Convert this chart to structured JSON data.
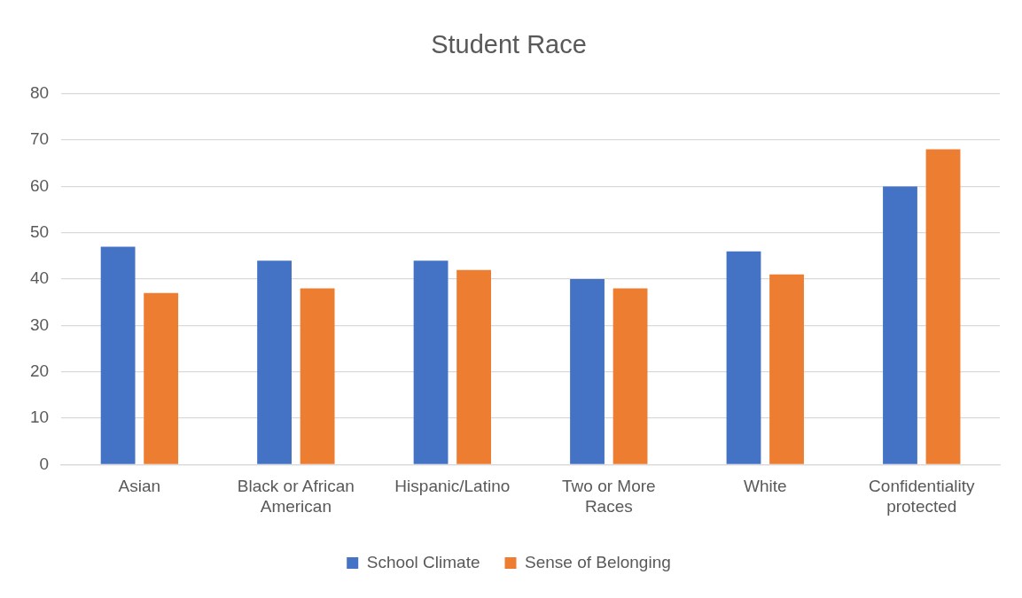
{
  "chart_data": {
    "type": "bar",
    "title": "Student Race",
    "categories": [
      "Asian",
      "Black or African American",
      "Hispanic/Latino",
      "Two or More Races",
      "White",
      "Confidentiality protected"
    ],
    "series": [
      {
        "name": "School Climate",
        "color": "#4472c4",
        "values": [
          47,
          44,
          44,
          40,
          46,
          60
        ]
      },
      {
        "name": "Sense of Belonging",
        "color": "#ed7d31",
        "values": [
          37,
          38,
          42,
          38,
          41,
          68
        ]
      }
    ],
    "ylim": [
      0,
      80
    ],
    "yticks": [
      0,
      10,
      20,
      30,
      40,
      50,
      60,
      70,
      80
    ],
    "grid": "y",
    "legend": "bottom"
  }
}
